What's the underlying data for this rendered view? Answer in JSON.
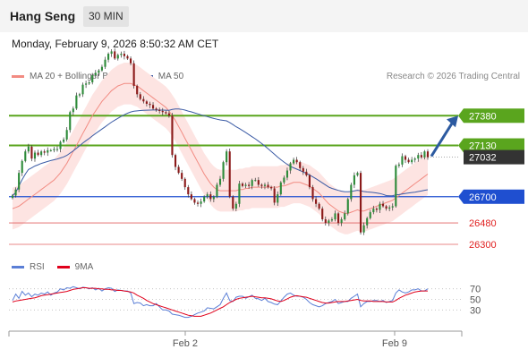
{
  "header": {
    "title": "Hang Seng",
    "timeframe": "30 MIN"
  },
  "datetime": "Monday, February 9, 2026 8:50:32 AM CET",
  "legend_main": [
    {
      "label": "MA 20 + Bollinger Bands",
      "color": "#f28b82"
    },
    {
      "label": "MA 50",
      "color": "#3b5ba5"
    }
  ],
  "credit": "Research © 2026 Trading Central",
  "legend_rsi": [
    {
      "label": "RSI",
      "color": "#5b7fd6"
    },
    {
      "label": "9MA",
      "color": "#e0001b"
    }
  ],
  "colors": {
    "green": "#5aa51e",
    "blue": "#1f4fd0",
    "red": "#e06060",
    "dark": "#333333",
    "arrow": "#2c5aa0"
  },
  "chart_data": [
    {
      "type": "candlestick",
      "ylim": [
        26210,
        27630
      ],
      "price_levels": [
        {
          "label": "27380",
          "value": 27380,
          "style": "green-line"
        },
        {
          "label": "27130",
          "value": 27130,
          "style": "green-line"
        },
        {
          "label": "27032",
          "value": 27032,
          "style": "last-price"
        },
        {
          "label": "26700",
          "value": 26700,
          "style": "blue-line"
        },
        {
          "label": "26480",
          "value": 26480,
          "style": "red-line"
        },
        {
          "label": "26300",
          "value": 26300,
          "style": "red-line"
        }
      ],
      "x_ticks": [
        "Feb 2",
        "Feb 9"
      ],
      "close": [
        26710,
        26760,
        26900,
        27000,
        27080,
        27120,
        27020,
        27070,
        27050,
        27080,
        27070,
        27090,
        27090,
        27100,
        27100,
        27160,
        27180,
        27260,
        27410,
        27440,
        27550,
        27560,
        27640,
        27650,
        27660,
        27720,
        27740,
        27760,
        27790,
        27850,
        27900,
        27920,
        27860,
        27890,
        27900,
        27880,
        27860,
        27820,
        27630,
        27560,
        27520,
        27500,
        27480,
        27470,
        27440,
        27430,
        27420,
        27410,
        27400,
        27380,
        27050,
        26950,
        26900,
        26850,
        26780,
        26720,
        26680,
        26650,
        26640,
        26660,
        26700,
        26720,
        26680,
        26700,
        26800,
        26850,
        26990,
        27080,
        26700,
        26600,
        26640,
        26810,
        26790,
        26800,
        26790,
        26840,
        26840,
        26800,
        26790,
        26800,
        26780,
        26770,
        26650,
        26720,
        26820,
        26860,
        26920,
        26980,
        27010,
        26990,
        26940,
        26910,
        26880,
        26780,
        26680,
        26640,
        26600,
        26510,
        26480,
        26500,
        26510,
        26560,
        26480,
        26510,
        26560,
        26680,
        26800,
        26880,
        26900,
        26400,
        26460,
        26520,
        26570,
        26600,
        26590,
        26640,
        26620,
        26600,
        26610,
        26620,
        26960,
        26970,
        27040,
        27010,
        26990,
        27010,
        27020,
        27050,
        27030,
        27080,
        27032
      ],
      "ma20": [
        26600,
        26610,
        26620,
        26640,
        26660,
        26680,
        26700,
        26720,
        26740,
        26760,
        26780,
        26800,
        26820,
        26840,
        26870,
        26900,
        26940,
        26980,
        27030,
        27080,
        27130,
        27180,
        27230,
        27280,
        27330,
        27380,
        27420,
        27460,
        27500,
        27530,
        27560,
        27590,
        27610,
        27630,
        27640,
        27650,
        27650,
        27650,
        27640,
        27630,
        27610,
        27590,
        27570,
        27550,
        27530,
        27510,
        27490,
        27470,
        27450,
        27420,
        27380,
        27340,
        27290,
        27240,
        27190,
        27140,
        27090,
        27040,
        26990,
        26940,
        26890,
        26850,
        26810,
        26780,
        26760,
        26750,
        26750,
        26750,
        26750,
        26750,
        26750,
        26760,
        26760,
        26770,
        26770,
        26780,
        26780,
        26780,
        26780,
        26780,
        26780,
        26780,
        26780,
        26780,
        26790,
        26790,
        26800,
        26810,
        26820,
        26820,
        26820,
        26810,
        26800,
        26790,
        26770,
        26750,
        26730,
        26700,
        26670,
        26640,
        26620,
        26600,
        26580,
        26570,
        26560,
        26560,
        26570,
        26580,
        26590,
        26580,
        26580,
        26590,
        26600,
        26610,
        26620,
        26630,
        26640,
        26650,
        26660,
        26670,
        26690,
        26710,
        26730,
        26750,
        26770,
        26790,
        26810,
        26830,
        26850,
        26870,
        26890
      ]
    },
    {
      "type": "line",
      "ylim": [
        0,
        100
      ],
      "y_ticks": [
        70,
        50,
        30
      ],
      "series": [
        {
          "name": "RSI",
          "values": [
            48,
            60,
            52,
            65,
            58,
            62,
            55,
            60,
            58,
            62,
            60,
            64,
            58,
            62,
            64,
            70,
            68,
            72,
            71,
            74,
            72,
            70,
            73,
            72,
            70,
            72,
            68,
            71,
            66,
            70,
            72,
            71,
            65,
            68,
            67,
            66,
            66,
            62,
            42,
            44,
            43,
            38,
            40,
            38,
            38,
            42,
            36,
            30,
            30,
            28,
            22,
            21,
            20,
            18,
            16,
            16,
            18,
            21,
            24,
            26,
            28,
            34,
            33,
            32,
            36,
            40,
            52,
            62,
            48,
            46,
            54,
            56,
            56,
            52,
            55,
            58,
            52,
            51,
            48,
            52,
            46,
            44,
            41,
            40,
            47,
            54,
            60,
            62,
            58,
            56,
            56,
            54,
            50,
            44,
            40,
            38,
            36,
            38,
            42,
            44,
            46,
            50,
            42,
            44,
            46,
            46,
            52,
            56,
            60,
            36,
            42,
            46,
            46,
            48,
            48,
            46,
            48,
            44,
            46,
            48,
            62,
            68,
            64,
            62,
            64,
            68,
            68,
            70,
            66,
            66,
            70
          ]
        },
        {
          "name": "9MA",
          "values": [
            45,
            47,
            48,
            49,
            50,
            51,
            52,
            53,
            55,
            57,
            58,
            59,
            60,
            61,
            62,
            63,
            64,
            65,
            67,
            69,
            70,
            71,
            72,
            72,
            71,
            71,
            71,
            70,
            70,
            69,
            69,
            68,
            68,
            67,
            67,
            66,
            65,
            64,
            62,
            58,
            55,
            52,
            48,
            45,
            42,
            40,
            38,
            36,
            34,
            32,
            30,
            28,
            26,
            24,
            22,
            20,
            19,
            18,
            18,
            18,
            20,
            22,
            24,
            27,
            30,
            33,
            36,
            40,
            44,
            47,
            50,
            52,
            53,
            54,
            55,
            56,
            55,
            54,
            53,
            53,
            52,
            51,
            49,
            47,
            46,
            48,
            51,
            54,
            56,
            57,
            56,
            55,
            54,
            52,
            50,
            48,
            46,
            44,
            43,
            43,
            44,
            45,
            46,
            46,
            46,
            47,
            48,
            49,
            50,
            48,
            47,
            47,
            47,
            46,
            46,
            46,
            46,
            45,
            45,
            45,
            48,
            52,
            55,
            58,
            60,
            62,
            64,
            65,
            66,
            66,
            66
          ]
        }
      ]
    }
  ]
}
